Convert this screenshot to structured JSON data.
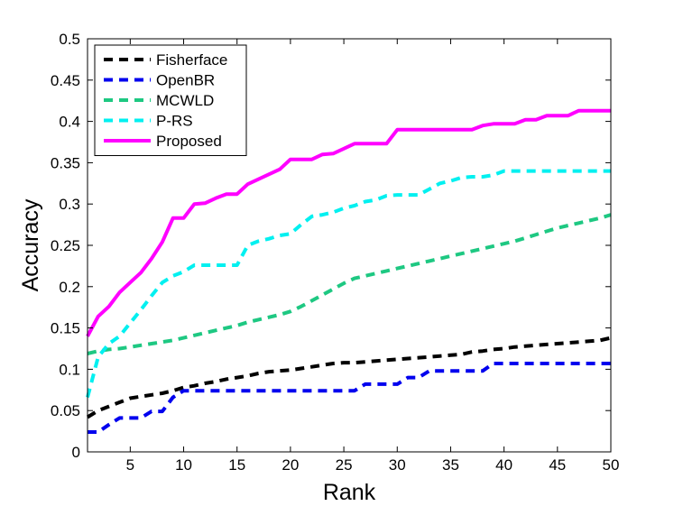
{
  "chart_data": {
    "type": "line",
    "title": "",
    "xlabel": "Rank",
    "ylabel": "Accuracy",
    "xlim": [
      1,
      50
    ],
    "ylim": [
      0,
      0.5
    ],
    "xticks": [
      5,
      10,
      15,
      20,
      25,
      30,
      35,
      40,
      45,
      50
    ],
    "xtick_labels": [
      "5",
      "10",
      "15",
      "20",
      "25",
      "30",
      "35",
      "40",
      "45",
      "50"
    ],
    "yticks": [
      0,
      0.05,
      0.1,
      0.15,
      0.2,
      0.25,
      0.3,
      0.35,
      0.4,
      0.45,
      0.5
    ],
    "ytick_labels": [
      "0",
      "0.05",
      "0.1",
      "0.15",
      "0.2",
      "0.25",
      "0.3",
      "0.35",
      "0.4",
      "0.45",
      "0.5"
    ],
    "grid": false,
    "legend_position": "top-left",
    "x": [
      1,
      2,
      3,
      4,
      5,
      6,
      7,
      8,
      9,
      10,
      11,
      12,
      13,
      14,
      15,
      16,
      17,
      18,
      19,
      20,
      21,
      22,
      23,
      24,
      25,
      26,
      27,
      28,
      29,
      30,
      31,
      32,
      33,
      34,
      35,
      36,
      37,
      38,
      39,
      40,
      41,
      42,
      43,
      44,
      45,
      46,
      47,
      48,
      49,
      50
    ],
    "series": [
      {
        "name": "Fisherface",
        "color": "#000000",
        "style": "dashed",
        "values": [
          0.042,
          0.05,
          0.055,
          0.06,
          0.065,
          0.067,
          0.069,
          0.071,
          0.074,
          0.078,
          0.08,
          0.083,
          0.085,
          0.088,
          0.09,
          0.092,
          0.095,
          0.097,
          0.098,
          0.099,
          0.101,
          0.103,
          0.105,
          0.107,
          0.108,
          0.108,
          0.109,
          0.11,
          0.111,
          0.112,
          0.113,
          0.114,
          0.115,
          0.116,
          0.117,
          0.118,
          0.121,
          0.122,
          0.124,
          0.125,
          0.127,
          0.128,
          0.129,
          0.13,
          0.131,
          0.132,
          0.133,
          0.134,
          0.135,
          0.138
        ]
      },
      {
        "name": "OpenBR",
        "color": "#0000ee",
        "style": "dashed",
        "values": [
          0.024,
          0.024,
          0.033,
          0.041,
          0.041,
          0.041,
          0.049,
          0.049,
          0.066,
          0.074,
          0.074,
          0.074,
          0.074,
          0.074,
          0.074,
          0.074,
          0.074,
          0.074,
          0.074,
          0.074,
          0.074,
          0.074,
          0.074,
          0.074,
          0.074,
          0.074,
          0.082,
          0.082,
          0.082,
          0.082,
          0.09,
          0.09,
          0.098,
          0.098,
          0.098,
          0.098,
          0.098,
          0.098,
          0.107,
          0.107,
          0.107,
          0.107,
          0.107,
          0.107,
          0.107,
          0.107,
          0.107,
          0.107,
          0.107,
          0.107
        ]
      },
      {
        "name": "MCWLD",
        "color": "#1ec882",
        "style": "dashed",
        "values": [
          0.119,
          0.122,
          0.124,
          0.125,
          0.127,
          0.129,
          0.131,
          0.133,
          0.135,
          0.138,
          0.141,
          0.144,
          0.147,
          0.15,
          0.153,
          0.157,
          0.16,
          0.163,
          0.166,
          0.17,
          0.176,
          0.183,
          0.19,
          0.197,
          0.204,
          0.21,
          0.213,
          0.216,
          0.219,
          0.222,
          0.225,
          0.228,
          0.231,
          0.234,
          0.237,
          0.24,
          0.243,
          0.246,
          0.249,
          0.252,
          0.255,
          0.259,
          0.263,
          0.267,
          0.271,
          0.274,
          0.277,
          0.28,
          0.283,
          0.287
        ]
      },
      {
        "name": "P-RS",
        "color": "#00f0f0",
        "style": "dashed",
        "values": [
          0.066,
          0.115,
          0.131,
          0.14,
          0.156,
          0.172,
          0.189,
          0.205,
          0.213,
          0.218,
          0.226,
          0.226,
          0.226,
          0.226,
          0.226,
          0.25,
          0.255,
          0.258,
          0.262,
          0.264,
          0.275,
          0.285,
          0.287,
          0.29,
          0.295,
          0.298,
          0.303,
          0.305,
          0.31,
          0.311,
          0.311,
          0.311,
          0.318,
          0.325,
          0.328,
          0.332,
          0.333,
          0.333,
          0.335,
          0.34,
          0.34,
          0.34,
          0.34,
          0.34,
          0.34,
          0.34,
          0.34,
          0.34,
          0.34,
          0.34
        ]
      },
      {
        "name": "Proposed",
        "color": "#ff00ff",
        "style": "solid",
        "values": [
          0.14,
          0.164,
          0.176,
          0.193,
          0.205,
          0.217,
          0.234,
          0.254,
          0.283,
          0.283,
          0.3,
          0.301,
          0.307,
          0.312,
          0.312,
          0.324,
          0.33,
          0.336,
          0.342,
          0.354,
          0.354,
          0.354,
          0.36,
          0.361,
          0.367,
          0.373,
          0.373,
          0.373,
          0.373,
          0.39,
          0.39,
          0.39,
          0.39,
          0.39,
          0.39,
          0.39,
          0.39,
          0.395,
          0.397,
          0.397,
          0.397,
          0.402,
          0.402,
          0.407,
          0.407,
          0.407,
          0.413,
          0.413,
          0.413,
          0.413
        ]
      }
    ]
  }
}
